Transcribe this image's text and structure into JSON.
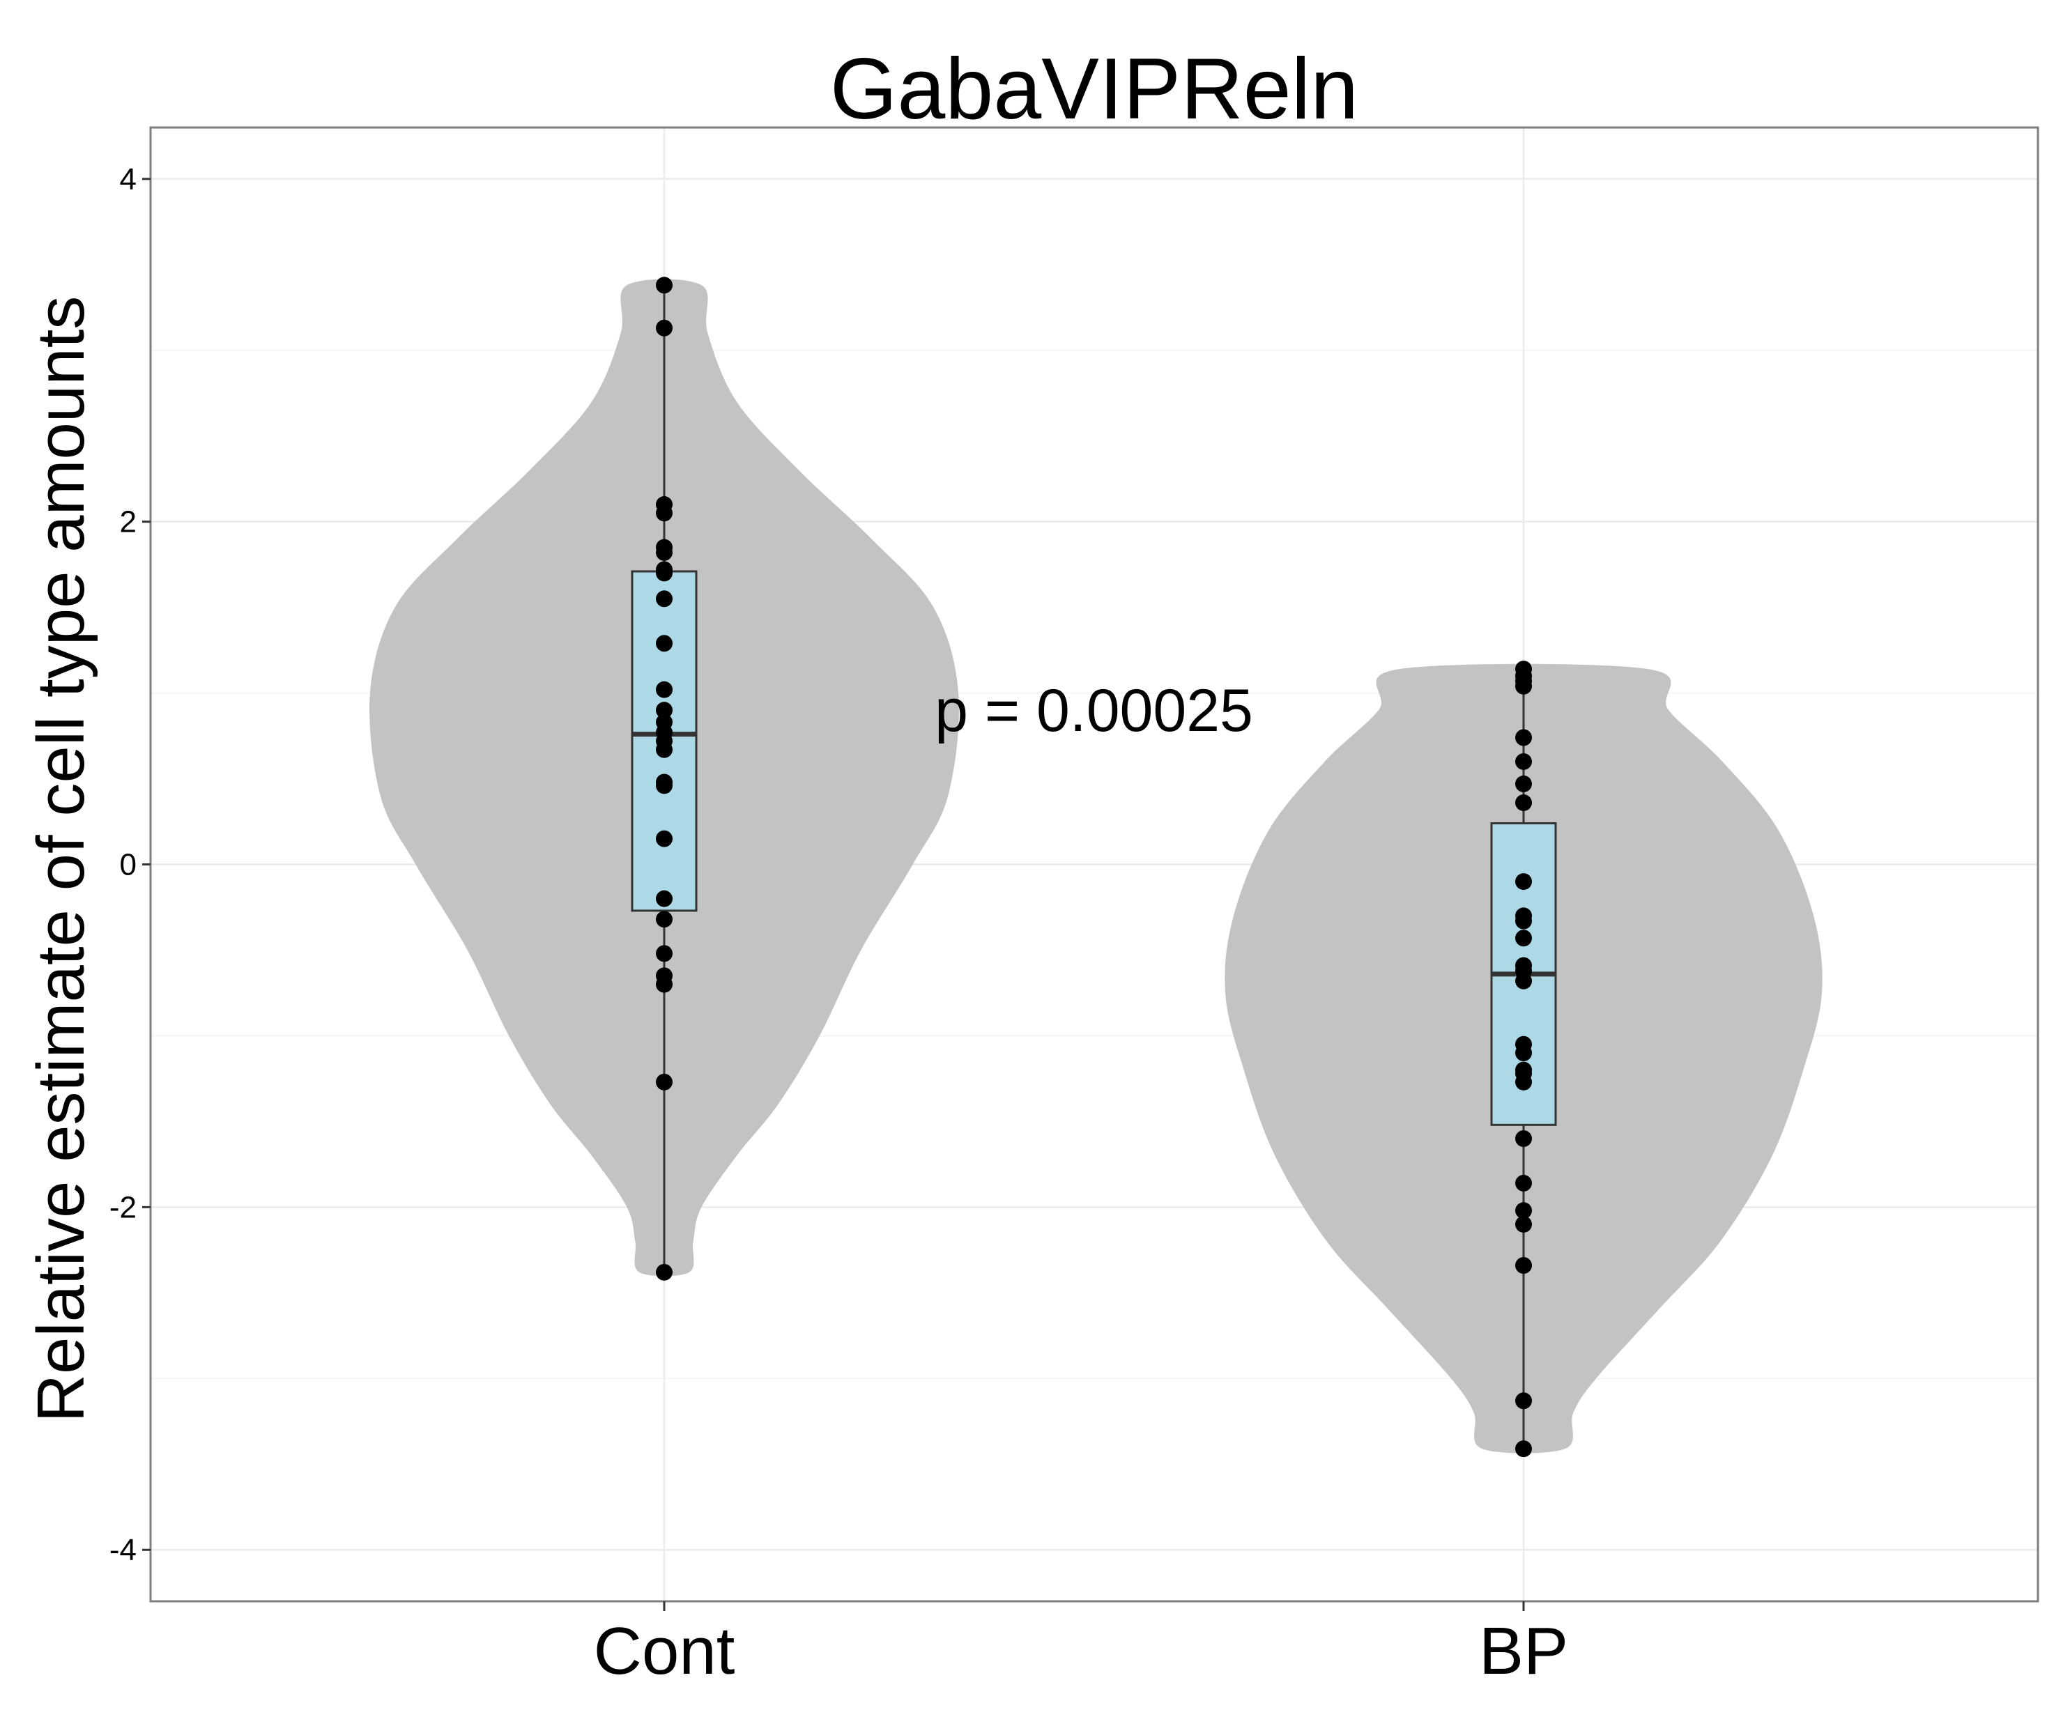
{
  "chart_data": {
    "type": "violin",
    "title": "GabaVIPReln",
    "xlabel": "",
    "ylabel": "Relative estimate of cell type amounts",
    "ylim": [
      -4.3,
      4.3
    ],
    "yticks": [
      -4,
      -2,
      0,
      2,
      4
    ],
    "ytick_labels": [
      "-4",
      "-2",
      "0",
      "2",
      "4"
    ],
    "categories": [
      "Cont",
      "BP"
    ],
    "grid": true,
    "annotation": {
      "text": "p = 0.00025",
      "x": 1.5,
      "y": 0.9
    },
    "colors": {
      "violin": "#c3c3c3",
      "box": "#add8e6",
      "point": "#000000",
      "grid": "#ebebeb",
      "border": "#7f7f7f"
    },
    "groups": [
      {
        "name": "Cont",
        "points": [
          3.38,
          3.13,
          2.1,
          2.05,
          1.85,
          1.82,
          1.72,
          1.7,
          1.55,
          1.29,
          1.02,
          0.9,
          0.83,
          0.77,
          0.72,
          0.67,
          0.48,
          0.46,
          0.15,
          -0.2,
          -0.32,
          -0.52,
          -0.65,
          -0.7,
          -1.27,
          -2.38
        ],
        "box": {
          "q1": -0.27,
          "median": 0.76,
          "q3": 1.71,
          "whisker_low": -2.38,
          "whisker_high": 3.38
        },
        "violin_profile": [
          [
            -2.38,
            0.12
          ],
          [
            -2.2,
            0.14
          ],
          [
            -2.0,
            0.18
          ],
          [
            -1.7,
            0.35
          ],
          [
            -1.4,
            0.55
          ],
          [
            -1.0,
            0.75
          ],
          [
            -0.5,
            0.95
          ],
          [
            0.0,
            1.2
          ],
          [
            0.4,
            1.37
          ],
          [
            1.0,
            1.42
          ],
          [
            1.5,
            1.3
          ],
          [
            1.9,
            1.0
          ],
          [
            2.3,
            0.65
          ],
          [
            2.7,
            0.35
          ],
          [
            3.1,
            0.21
          ],
          [
            3.38,
            0.18
          ]
        ]
      },
      {
        "name": "BP",
        "points": [
          1.14,
          1.1,
          1.07,
          1.04,
          0.74,
          0.6,
          0.47,
          0.36,
          -0.1,
          -0.3,
          -0.33,
          -0.43,
          -0.59,
          -0.62,
          -0.68,
          -1.05,
          -1.1,
          -1.2,
          -1.22,
          -1.27,
          -1.6,
          -1.86,
          -2.02,
          -2.1,
          -2.34,
          -3.13,
          -3.41
        ],
        "box": {
          "q1": -1.52,
          "median": -0.64,
          "q3": 0.24,
          "whisker_low": -3.41,
          "whisker_high": 1.14
        },
        "violin_profile": [
          [
            -3.41,
            0.2
          ],
          [
            -3.2,
            0.24
          ],
          [
            -3.0,
            0.35
          ],
          [
            -2.6,
            0.65
          ],
          [
            -2.2,
            0.95
          ],
          [
            -1.7,
            1.2
          ],
          [
            -1.2,
            1.35
          ],
          [
            -0.75,
            1.44
          ],
          [
            -0.3,
            1.4
          ],
          [
            0.2,
            1.23
          ],
          [
            0.6,
            0.96
          ],
          [
            0.9,
            0.7
          ],
          [
            1.14,
            0.6
          ]
        ]
      }
    ]
  }
}
